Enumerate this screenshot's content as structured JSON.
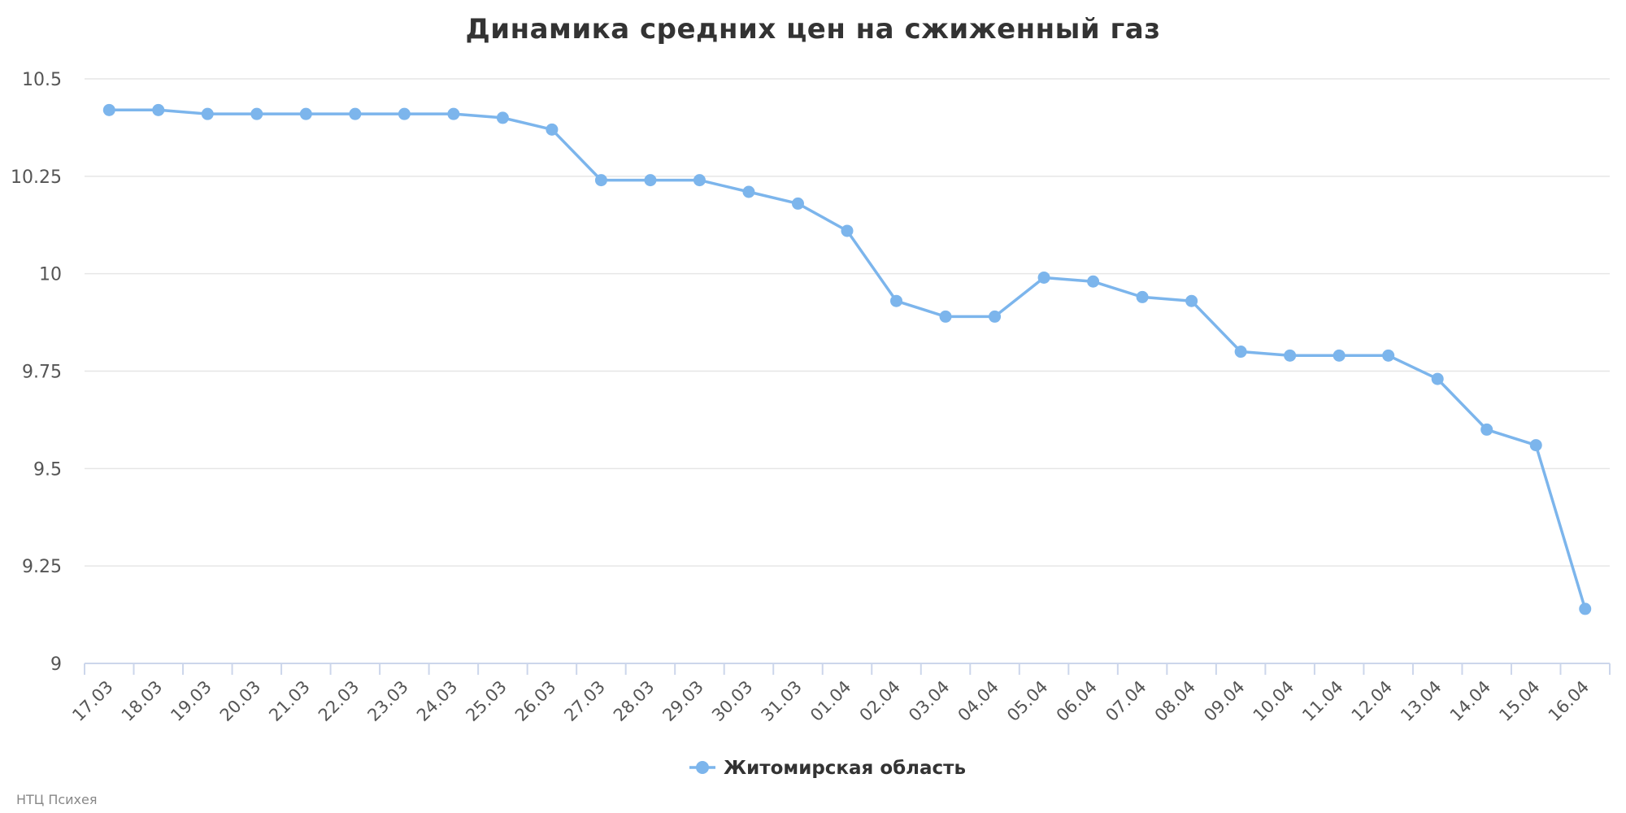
{
  "chart_data": {
    "type": "line",
    "title": "Динамика средних цен на сжиженный газ",
    "xlabel": "",
    "ylabel": "",
    "categories": [
      "17.03",
      "18.03",
      "19.03",
      "20.03",
      "21.03",
      "22.03",
      "23.03",
      "24.03",
      "25.03",
      "26.03",
      "27.03",
      "28.03",
      "29.03",
      "30.03",
      "31.03",
      "01.04",
      "02.04",
      "03.04",
      "04.04",
      "05.04",
      "06.04",
      "07.04",
      "08.04",
      "09.04",
      "10.04",
      "11.04",
      "12.04",
      "13.04",
      "14.04",
      "15.04",
      "16.04"
    ],
    "series": [
      {
        "name": "Житомирская область",
        "color": "#7cb5ec",
        "values": [
          10.42,
          10.42,
          10.41,
          10.41,
          10.41,
          10.41,
          10.41,
          10.41,
          10.4,
          10.37,
          10.24,
          10.24,
          10.24,
          10.21,
          10.18,
          10.11,
          9.93,
          9.89,
          9.89,
          9.99,
          9.98,
          9.94,
          9.93,
          9.8,
          9.79,
          9.79,
          9.79,
          9.73,
          9.6,
          9.56,
          9.14
        ]
      }
    ],
    "ylim": [
      9,
      10.5
    ],
    "y_ticks": [
      "9",
      "9.25",
      "9.5",
      "9.75",
      "10",
      "10.25",
      "10.5"
    ],
    "grid": true,
    "legend_position": "bottom-center",
    "credits": "НТЦ Психея"
  }
}
